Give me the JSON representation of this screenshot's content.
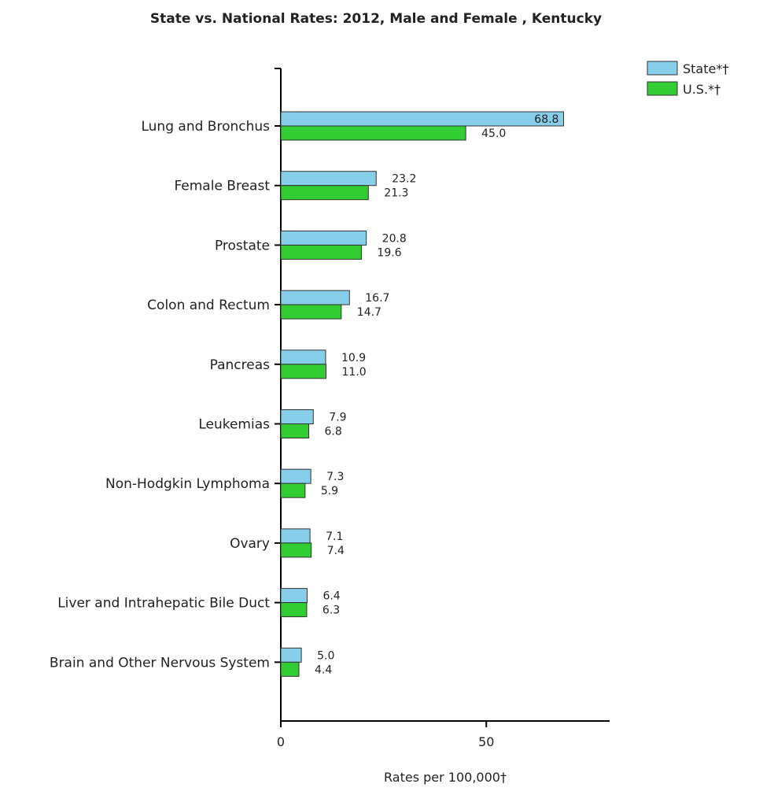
{
  "chart_data": {
    "type": "bar",
    "orientation": "horizontal",
    "title": "State vs. National Rates: 2012, Male and Female , Kentucky",
    "xlabel": "Rates per 100,000†",
    "ylabel": "",
    "xlim": [
      0,
      80
    ],
    "xticks": [
      0,
      50
    ],
    "grid": false,
    "legend_position": "top-right",
    "categories": [
      "Lung and Bronchus",
      "Female Breast",
      "Prostate",
      "Colon and Rectum",
      "Pancreas",
      "Leukemias",
      "Non-Hodgkin Lymphoma",
      "Ovary",
      "Liver and Intrahepatic Bile Duct",
      "Brain and Other Nervous System"
    ],
    "series": [
      {
        "name": "State*†",
        "color": "#87CEEB",
        "values": [
          68.8,
          23.2,
          20.8,
          16.7,
          10.9,
          7.9,
          7.3,
          7.1,
          6.4,
          5.0
        ],
        "labels": [
          "68.8",
          "23.2",
          "20.8",
          "16.7",
          "10.9",
          "7.9",
          "7.3",
          "7.1",
          "6.4",
          "5.0"
        ]
      },
      {
        "name": "U.S.*†",
        "color": "#32CD32",
        "values": [
          45.0,
          21.3,
          19.6,
          14.7,
          11.0,
          6.8,
          5.9,
          7.4,
          6.3,
          4.4
        ],
        "labels": [
          "45.0",
          "21.3",
          "19.6",
          "14.7",
          "11.0",
          "6.8",
          "5.9",
          "7.4",
          "6.3",
          "4.4"
        ]
      }
    ]
  }
}
